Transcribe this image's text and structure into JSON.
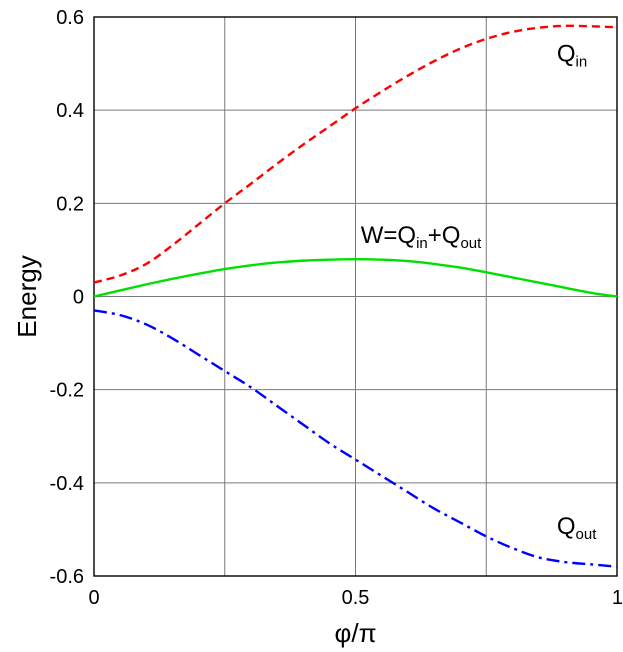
{
  "chart_data": {
    "type": "line",
    "xlabel": "φ/π",
    "ylabel": "Energy",
    "xlim": [
      0,
      1
    ],
    "ylim": [
      -0.6,
      0.6
    ],
    "grid": true,
    "x_ticks": [
      0,
      0.25,
      0.5,
      0.75,
      1
    ],
    "x_tick_labels": [
      "0",
      "",
      "0.5",
      "",
      "1"
    ],
    "y_ticks": [
      -0.6,
      -0.4,
      -0.2,
      0,
      0.2,
      0.4,
      0.6
    ],
    "y_tick_labels": [
      "-0.6",
      "-0.4",
      "-0.2",
      "0",
      "0.2",
      "0.4",
      "0.6"
    ],
    "x": [
      0,
      0.05,
      0.1,
      0.15,
      0.2,
      0.25,
      0.3,
      0.35,
      0.4,
      0.45,
      0.5,
      0.55,
      0.6,
      0.65,
      0.7,
      0.75,
      0.8,
      0.85,
      0.9,
      0.95,
      1.0
    ],
    "series": [
      {
        "style": "dashed",
        "color": "#ff0000",
        "values": [
          0.03,
          0.045,
          0.07,
          0.11,
          0.155,
          0.2,
          0.242,
          0.285,
          0.326,
          0.365,
          0.404,
          0.44,
          0.474,
          0.505,
          0.532,
          0.553,
          0.568,
          0.577,
          0.581,
          0.58,
          0.578
        ]
      },
      {
        "style": "solid",
        "color": "#00e000",
        "values": [
          0.0,
          0.013,
          0.026,
          0.038,
          0.049,
          0.059,
          0.067,
          0.073,
          0.077,
          0.079,
          0.08,
          0.079,
          0.076,
          0.07,
          0.062,
          0.052,
          0.041,
          0.03,
          0.019,
          0.008,
          0.0
        ]
      },
      {
        "style": "dash-dot",
        "color": "#0000ff",
        "values": [
          -0.03,
          -0.04,
          -0.06,
          -0.09,
          -0.125,
          -0.16,
          -0.195,
          -0.235,
          -0.275,
          -0.315,
          -0.35,
          -0.385,
          -0.42,
          -0.455,
          -0.485,
          -0.515,
          -0.54,
          -0.56,
          -0.57,
          -0.575,
          -0.58
        ]
      }
    ],
    "annotations": [
      {
        "id": "q-in",
        "main": "Q",
        "sub": "in",
        "x": 0.885,
        "y": 0.505
      },
      {
        "id": "w-sum",
        "parts": [
          {
            "text": "W=Q",
            "sub": false
          },
          {
            "text": "in",
            "sub": true
          },
          {
            "text": "+Q",
            "sub": false
          },
          {
            "text": "out",
            "sub": true
          }
        ],
        "x": 0.51,
        "y": 0.115
      },
      {
        "id": "q-out",
        "main": "Q",
        "sub": "out",
        "x": 0.885,
        "y": -0.51
      }
    ]
  }
}
